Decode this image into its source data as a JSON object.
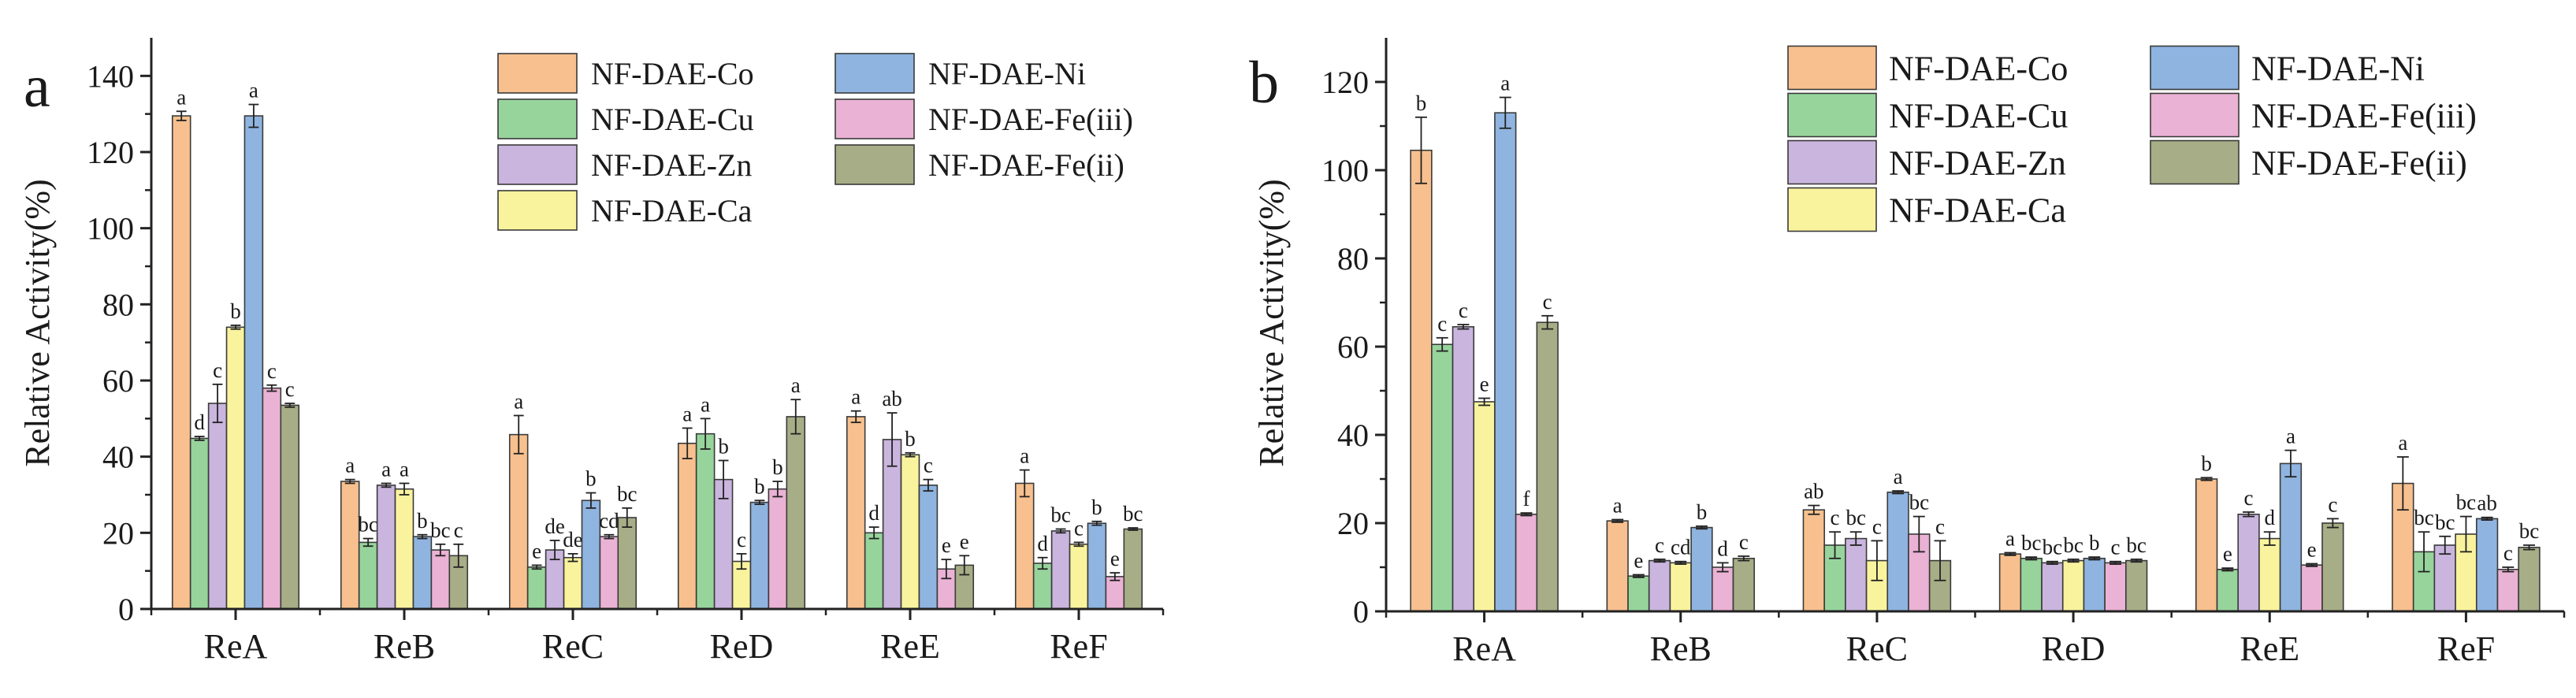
{
  "chart_data": [
    {
      "type": "bar",
      "panel_label": "a",
      "title": "",
      "xlabel": "",
      "ylabel": "Relative Activity(%)",
      "ylim": [
        0,
        150
      ],
      "yticks": [
        0,
        20,
        40,
        60,
        80,
        100,
        120,
        140
      ],
      "grid": false,
      "legend_position": "top-right",
      "categories": [
        "ReA",
        "ReB",
        "ReC",
        "ReD",
        "ReE",
        "ReF"
      ],
      "series": [
        {
          "name": "NF-DAE-Co",
          "color": "#f7c08e",
          "values": [
            129.5,
            33.5,
            45.8,
            43.5,
            50.5,
            33.0
          ],
          "errors": [
            1.2,
            0.5,
            5.0,
            4.0,
            1.5,
            3.5
          ],
          "letters": [
            "a",
            "a",
            "a",
            "a",
            "a",
            "a"
          ]
        },
        {
          "name": "NF-DAE-Cu",
          "color": "#97d49c",
          "values": [
            44.8,
            17.5,
            11.0,
            46.0,
            20.0,
            12.0
          ],
          "errors": [
            0.5,
            1.0,
            0.5,
            4.0,
            1.5,
            1.5
          ],
          "letters": [
            "d",
            "bc",
            "e",
            "a",
            "d",
            "d"
          ]
        },
        {
          "name": "NF-DAE-Zn",
          "color": "#c9b5dd",
          "values": [
            54.0,
            32.5,
            15.5,
            34.0,
            44.5,
            20.5
          ],
          "errors": [
            5.0,
            0.5,
            2.5,
            5.0,
            7.0,
            0.5
          ],
          "letters": [
            "c",
            "a",
            "de",
            "b",
            "ab",
            "bc"
          ]
        },
        {
          "name": "NF-DAE-Ca",
          "color": "#f9f39e",
          "values": [
            74.0,
            31.5,
            13.5,
            12.5,
            40.5,
            17.0
          ],
          "errors": [
            0.5,
            1.5,
            1.0,
            2.0,
            0.5,
            0.5
          ],
          "letters": [
            "b",
            "a",
            "de",
            "c",
            "b",
            "c"
          ]
        },
        {
          "name": "NF-DAE-Ni",
          "color": "#8fb4e0",
          "values": [
            129.5,
            19.0,
            28.5,
            28.0,
            32.5,
            22.5
          ],
          "errors": [
            3.0,
            0.5,
            2.0,
            0.5,
            1.5,
            0.5
          ],
          "letters": [
            "a",
            "b",
            "b",
            "b",
            "c",
            "b"
          ]
        },
        {
          "name": "NF-DAE-Fe(iii)",
          "color": "#eab2d4",
          "values": [
            58.0,
            15.5,
            19.0,
            31.5,
            10.5,
            8.5
          ],
          "errors": [
            0.8,
            1.5,
            0.5,
            2.0,
            2.5,
            1.0
          ],
          "letters": [
            "c",
            "bc",
            "cd",
            "b",
            "e",
            "e"
          ]
        },
        {
          "name": "NF-DAE-Fe(ii)",
          "color": "#a7ad86",
          "values": [
            53.5,
            14.0,
            24.0,
            50.5,
            11.5,
            21.0
          ],
          "errors": [
            0.5,
            3.0,
            2.5,
            4.5,
            2.5,
            0.3
          ],
          "letters": [
            "c",
            "c",
            "bc",
            "a",
            "e",
            "bc"
          ]
        }
      ]
    },
    {
      "type": "bar",
      "panel_label": "b",
      "title": "",
      "xlabel": "",
      "ylabel": "Relative Activity(%)",
      "ylim": [
        0,
        130
      ],
      "yticks": [
        0,
        20,
        40,
        60,
        80,
        100,
        120
      ],
      "grid": false,
      "legend_position": "top-right",
      "categories": [
        "ReA",
        "ReB",
        "ReC",
        "ReD",
        "ReE",
        "ReF"
      ],
      "series": [
        {
          "name": "NF-DAE-Co",
          "color": "#f7c08e",
          "values": [
            104.5,
            20.5,
            23.0,
            13.0,
            30.0,
            29.0
          ],
          "errors": [
            7.5,
            0.3,
            1.0,
            0.3,
            0.3,
            6.0
          ],
          "letters": [
            "b",
            "a",
            "ab",
            "a",
            "b",
            "a"
          ]
        },
        {
          "name": "NF-DAE-Cu",
          "color": "#97d49c",
          "values": [
            60.5,
            8.0,
            15.0,
            12.0,
            9.5,
            13.5
          ],
          "errors": [
            1.5,
            0.3,
            3.0,
            0.3,
            0.3,
            4.5
          ],
          "letters": [
            "c",
            "e",
            "c",
            "bc",
            "e",
            "bc"
          ]
        },
        {
          "name": "NF-DAE-Zn",
          "color": "#c9b5dd",
          "values": [
            64.5,
            11.5,
            16.5,
            11.0,
            22.0,
            15.0
          ],
          "errors": [
            0.5,
            0.3,
            1.5,
            0.3,
            0.5,
            2.0
          ],
          "letters": [
            "c",
            "c",
            "bc",
            "bc",
            "c",
            "bc"
          ]
        },
        {
          "name": "NF-DAE-Ca",
          "color": "#f9f39e",
          "values": [
            47.5,
            11.0,
            11.5,
            11.5,
            16.5,
            17.5
          ],
          "errors": [
            0.8,
            0.3,
            4.5,
            0.3,
            1.5,
            4.0
          ],
          "letters": [
            "e",
            "cd",
            "c",
            "bc",
            "d",
            "bc"
          ]
        },
        {
          "name": "NF-DAE-Ni",
          "color": "#8fb4e0",
          "values": [
            113.0,
            19.0,
            27.0,
            12.0,
            33.5,
            21.0
          ],
          "errors": [
            3.5,
            0.3,
            0.3,
            0.3,
            3.0,
            0.3
          ],
          "letters": [
            "a",
            "b",
            "a",
            "b",
            "a",
            "ab"
          ]
        },
        {
          "name": "NF-DAE-Fe(iii)",
          "color": "#eab2d4",
          "values": [
            22.0,
            10.0,
            17.5,
            11.0,
            10.5,
            9.5
          ],
          "errors": [
            0.3,
            1.0,
            4.0,
            0.3,
            0.3,
            0.5
          ],
          "letters": [
            "f",
            "d",
            "bc",
            "c",
            "e",
            "c"
          ]
        },
        {
          "name": "NF-DAE-Fe(ii)",
          "color": "#a7ad86",
          "values": [
            65.5,
            12.0,
            11.5,
            11.5,
            20.0,
            14.5
          ],
          "errors": [
            1.5,
            0.5,
            4.5,
            0.3,
            1.0,
            0.5
          ],
          "letters": [
            "c",
            "c",
            "c",
            "bc",
            "c",
            "bc"
          ]
        }
      ]
    }
  ]
}
